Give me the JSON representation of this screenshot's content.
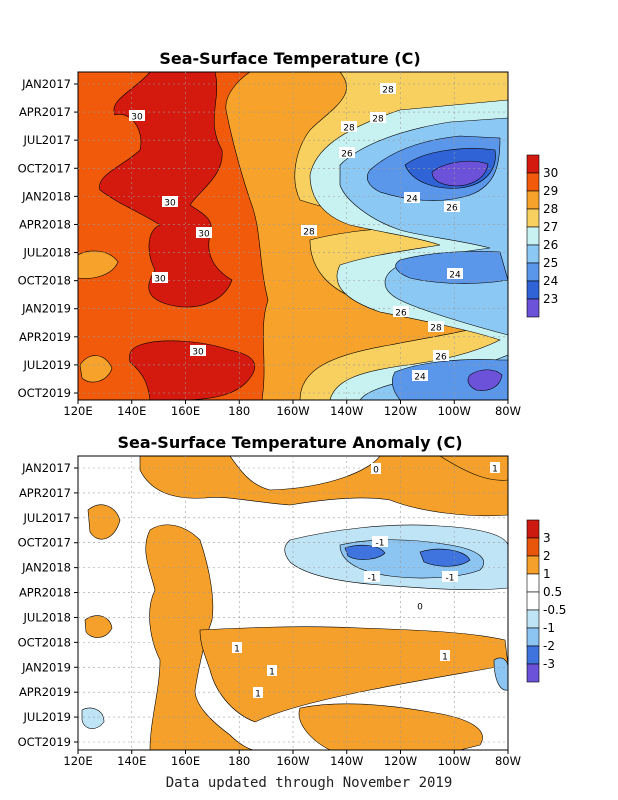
{
  "footer": "Data updated through November 2019",
  "chart_data": [
    {
      "type": "heatmap",
      "title": "Sea-Surface Temperature (C)",
      "x_ticks": [
        "120E",
        "140E",
        "160E",
        "180",
        "160W",
        "140W",
        "120W",
        "100W",
        "80W"
      ],
      "y_ticks": [
        "JAN2017",
        "APR2017",
        "JUL2017",
        "OCT2017",
        "JAN2018",
        "APR2018",
        "JUL2018",
        "OCT2018",
        "JAN2019",
        "APR2019",
        "JUL2019",
        "OCT2019"
      ],
      "colorbar": {
        "labels": [
          "30",
          "29",
          "28",
          "27",
          "26",
          "25",
          "24",
          "23"
        ],
        "colors": [
          "#d41a0f",
          "#f05a0a",
          "#f7a22a",
          "#f8d060",
          "#c8f2f2",
          "#8cc8f4",
          "#5a96ea",
          "#2f63d6",
          "#6b52d8"
        ]
      },
      "contour_labels": [
        "28",
        "30",
        "28",
        "28",
        "26",
        "30",
        "24",
        "26",
        "30",
        "28",
        "30",
        "24",
        "26",
        "28",
        "30",
        "26",
        "24"
      ]
    },
    {
      "type": "heatmap",
      "title": "Sea-Surface Temperature Anomaly (C)",
      "x_ticks": [
        "120E",
        "140E",
        "160E",
        "180",
        "160W",
        "140W",
        "120W",
        "100W",
        "80W"
      ],
      "y_ticks": [
        "JAN2017",
        "APR2017",
        "JUL2017",
        "OCT2017",
        "JAN2018",
        "APR2018",
        "JUL2018",
        "OCT2018",
        "JAN2019",
        "APR2019",
        "JUL2019",
        "OCT2019"
      ],
      "colorbar": {
        "labels": [
          "3",
          "2",
          "1",
          "0.5",
          "-0.5",
          "-1",
          "-2",
          "-3"
        ],
        "colors": [
          "#cc1a10",
          "#e8560c",
          "#f5a02a",
          "#ffffff",
          "#ffffff",
          "#bfe4f6",
          "#8cc4f2",
          "#3f74de",
          "#6b52d8"
        ]
      },
      "contour_labels": [
        "0",
        "1",
        "-1",
        "-1",
        "-1",
        "1",
        "1",
        "1",
        "1",
        "0"
      ]
    }
  ]
}
